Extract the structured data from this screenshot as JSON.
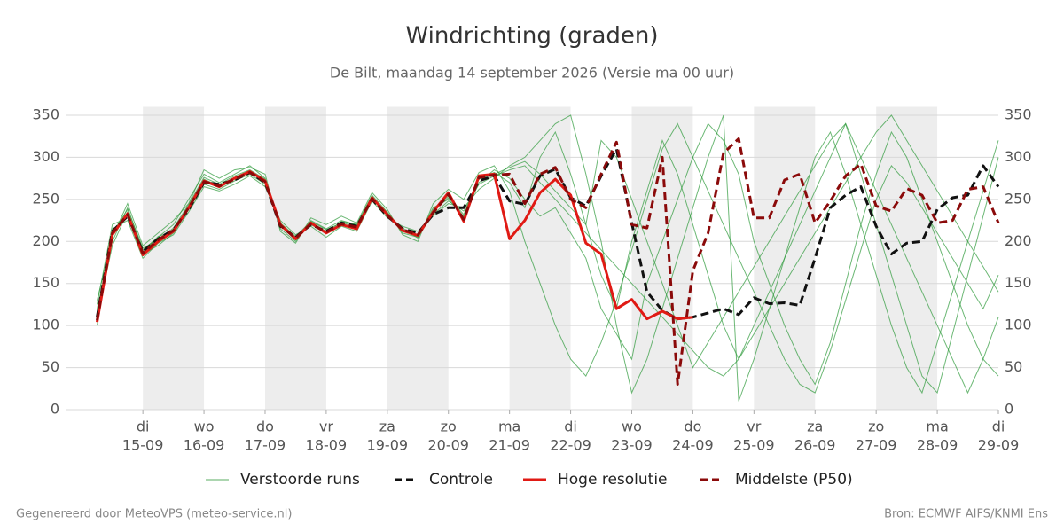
{
  "chart_data": {
    "type": "line",
    "title": "Windrichting (graden)",
    "subtitle": "De Bilt, maandag 14 september 2026 (Versie ma 00 uur)",
    "footer_left": "Gegenereerd door MeteoVPS (meteo-service.nl)",
    "footer_right": "Bron: ECMWF AIFS/KNMI Ens",
    "x": [
      0.25,
      0.5,
      0.75,
      1,
      1.25,
      1.5,
      1.75,
      2,
      2.25,
      2.5,
      2.75,
      3,
      3.25,
      3.5,
      3.75,
      4,
      4.25,
      4.5,
      4.75,
      5,
      5.25,
      5.5,
      5.75,
      6,
      6.25,
      6.5,
      6.75,
      7,
      7.25,
      7.5,
      7.75,
      8,
      8.25,
      8.5,
      8.75,
      9,
      9.25,
      9.5,
      9.75,
      10,
      10.25,
      10.5,
      10.75,
      11,
      11.25,
      11.5,
      11.75,
      12,
      12.25,
      12.5,
      12.75,
      13,
      13.25,
      13.5,
      13.75,
      14,
      14.25,
      14.5,
      14.75,
      15
    ],
    "xlim": [
      -0.25,
      15
    ],
    "xticks": [
      {
        "value": 1,
        "label": "15-09",
        "day": "di"
      },
      {
        "value": 2,
        "label": "16-09",
        "day": "wo"
      },
      {
        "value": 3,
        "label": "17-09",
        "day": "do"
      },
      {
        "value": 4,
        "label": "18-09",
        "day": "vr"
      },
      {
        "value": 5,
        "label": "19-09",
        "day": "za"
      },
      {
        "value": 6,
        "label": "20-09",
        "day": "zo"
      },
      {
        "value": 7,
        "label": "21-09",
        "day": "ma"
      },
      {
        "value": 8,
        "label": "22-09",
        "day": "di"
      },
      {
        "value": 9,
        "label": "23-09",
        "day": "wo"
      },
      {
        "value": 10,
        "label": "24-09",
        "day": "do"
      },
      {
        "value": 11,
        "label": "25-09",
        "day": "vr"
      },
      {
        "value": 12,
        "label": "26-09",
        "day": "za"
      },
      {
        "value": 13,
        "label": "27-09",
        "day": "zo"
      },
      {
        "value": 14,
        "label": "28-09",
        "day": "ma"
      },
      {
        "value": 15,
        "label": "29-09",
        "day": "di"
      }
    ],
    "ylim": [
      0,
      360
    ],
    "yticks": [
      0,
      50,
      100,
      150,
      200,
      250,
      300,
      350
    ],
    "grid": true,
    "shading": [
      [
        1,
        2
      ],
      [
        3,
        4
      ],
      [
        5,
        6
      ],
      [
        7,
        8
      ],
      [
        9,
        10
      ],
      [
        11,
        12
      ],
      [
        13,
        14
      ]
    ],
    "series": [
      {
        "name": "Verstoorde runs",
        "color": "#2e9a3a",
        "dash": false,
        "members": [
          [
            120,
            200,
            240,
            190,
            205,
            220,
            250,
            280,
            270,
            280,
            290,
            275,
            215,
            200,
            225,
            215,
            225,
            220,
            255,
            235,
            210,
            205,
            240,
            250,
            230,
            270,
            285,
            275,
            250,
            230,
            240,
            210,
            180,
            120,
            90,
            60,
            150,
            200,
            250,
            300,
            340,
            320,
            280,
            200,
            150,
            100,
            60,
            30,
            80,
            150,
            220,
            280,
            330,
            300,
            250,
            200,
            150,
            100,
            60,
            40
          ],
          [
            100,
            215,
            225,
            180,
            198,
            208,
            235,
            265,
            260,
            268,
            278,
            265,
            225,
            208,
            218,
            205,
            218,
            212,
            248,
            228,
            218,
            212,
            230,
            245,
            240,
            262,
            275,
            290,
            300,
            320,
            340,
            350,
            280,
            200,
            100,
            20,
            60,
            120,
            180,
            240,
            300,
            350,
            10,
            60,
            120,
            180,
            240,
            300,
            330,
            280,
            220,
            160,
            100,
            50,
            20,
            80,
            140,
            200,
            260,
            320
          ],
          [
            130,
            205,
            245,
            195,
            210,
            225,
            245,
            285,
            275,
            285,
            288,
            280,
            212,
            198,
            228,
            220,
            230,
            222,
            258,
            238,
            208,
            200,
            245,
            262,
            250,
            282,
            290,
            260,
            200,
            150,
            100,
            60,
            40,
            80,
            130,
            190,
            250,
            310,
            340,
            300,
            260,
            220,
            180,
            140,
            100,
            60,
            30,
            20,
            70,
            130,
            190,
            250,
            290,
            270,
            240,
            210,
            180,
            150,
            120,
            160
          ],
          [
            110,
            195,
            235,
            185,
            195,
            210,
            238,
            268,
            262,
            272,
            280,
            268,
            222,
            206,
            224,
            214,
            222,
            218,
            250,
            232,
            212,
            206,
            232,
            248,
            236,
            268,
            278,
            285,
            290,
            270,
            250,
            230,
            210,
            190,
            170,
            150,
            130,
            110,
            90,
            70,
            50,
            40,
            60,
            90,
            120,
            150,
            180,
            210,
            240,
            270,
            300,
            330,
            350,
            320,
            290,
            260,
            230,
            200,
            170,
            140
          ],
          [
            115,
            210,
            238,
            192,
            202,
            216,
            244,
            276,
            268,
            278,
            285,
            274,
            218,
            204,
            222,
            212,
            220,
            216,
            252,
            234,
            214,
            208,
            236,
            252,
            232,
            274,
            282,
            270,
            240,
            300,
            330,
            280,
            220,
            160,
            120,
            200,
            260,
            320,
            280,
            220,
            160,
            100,
            60,
            100,
            140,
            180,
            220,
            260,
            300,
            340,
            300,
            260,
            220,
            180,
            140,
            100,
            60,
            20,
            60,
            110
          ],
          [
            125,
            220,
            228,
            188,
            206,
            212,
            242,
            274,
            266,
            276,
            284,
            272,
            220,
            202,
            220,
            210,
            224,
            220,
            254,
            230,
            216,
            204,
            238,
            254,
            228,
            276,
            280,
            288,
            295,
            280,
            260,
            240,
            220,
            320,
            300,
            250,
            200,
            150,
            100,
            50,
            80,
            110,
            140,
            170,
            200,
            230,
            260,
            290,
            320,
            340,
            280,
            220,
            160,
            100,
            40,
            20,
            90,
            160,
            230,
            300
          ]
        ]
      },
      {
        "name": "Controle",
        "color": "#111111",
        "dash": true,
        "values": [
          110,
          212,
          230,
          188,
          203,
          214,
          238,
          270,
          268,
          273,
          282,
          270,
          218,
          205,
          220,
          212,
          222,
          218,
          250,
          230,
          215,
          210,
          232,
          240,
          240,
          272,
          278,
          248,
          244,
          278,
          286,
          252,
          242,
          278,
          310,
          222,
          140,
          118,
          108,
          110,
          115,
          120,
          113,
          133,
          126,
          127,
          124,
          180,
          240,
          255,
          265,
          218,
          185,
          198,
          200,
          238,
          252,
          255,
          290,
          265
        ]
      },
      {
        "name": "Hoge resolutie",
        "color": "#e01a14",
        "dash": false,
        "values": [
          104,
          208,
          233,
          184,
          200,
          212,
          240,
          272,
          265,
          275,
          283,
          272,
          220,
          203,
          222,
          210,
          220,
          215,
          252,
          232,
          213,
          207,
          235,
          258,
          224,
          278,
          280,
          203,
          225,
          258,
          274,
          255,
          198,
          185,
          120,
          131,
          108,
          117,
          108,
          110,
          null,
          null,
          null,
          null,
          null,
          null,
          null,
          null,
          null,
          null,
          null,
          null,
          null,
          null,
          null,
          null,
          null,
          null,
          null,
          null
        ]
      },
      {
        "name": "Middelste (P50)",
        "color": "#8b0a0a",
        "dash": true,
        "values": [
          106,
          210,
          232,
          186,
          202,
          213,
          240,
          271,
          266,
          274,
          282,
          271,
          219,
          204,
          221,
          211,
          221,
          217,
          251,
          231,
          214,
          208,
          234,
          256,
          226,
          276,
          279,
          280,
          245,
          280,
          288,
          250,
          240,
          280,
          318,
          220,
          216,
          300,
          30,
          165,
          210,
          305,
          322,
          228,
          228,
          273,
          280,
          222,
          248,
          278,
          292,
          242,
          236,
          263,
          255,
          222,
          225,
          262,
          265,
          222
        ]
      }
    ]
  }
}
